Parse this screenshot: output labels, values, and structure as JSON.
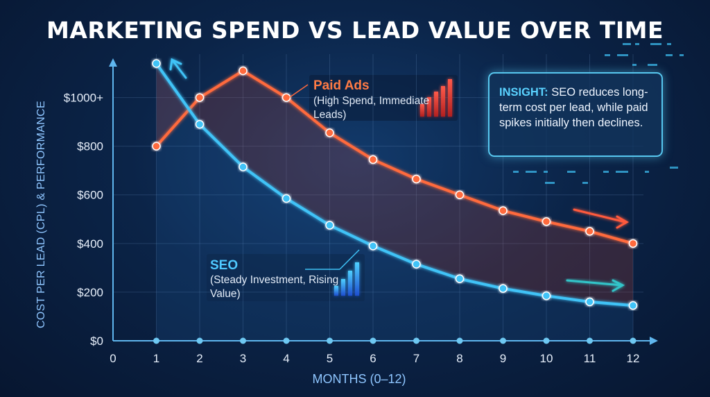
{
  "chart_data": {
    "type": "line",
    "title": "MARKETING SPEND VS LEAD VALUE OVER TIME",
    "xlabel": "MONTHS (0–12)",
    "ylabel": "COST PER LEAD (CPL) & PERFORMANCE",
    "x": [
      1,
      2,
      3,
      4,
      5,
      6,
      7,
      8,
      9,
      10,
      11,
      12
    ],
    "x_ticks": [
      "0",
      "1",
      "2",
      "3",
      "4",
      "5",
      "6",
      "7",
      "8",
      "9",
      "10",
      "11",
      "12"
    ],
    "y_ticks": [
      {
        "value": 0,
        "label": "$0"
      },
      {
        "value": 200,
        "label": "$200"
      },
      {
        "value": 400,
        "label": "$400"
      },
      {
        "value": 600,
        "label": "$600"
      },
      {
        "value": 800,
        "label": "$800"
      },
      {
        "value": 1000,
        "label": "$1000+"
      }
    ],
    "xlim": [
      0,
      12
    ],
    "ylim": [
      0,
      1150
    ],
    "grid": true,
    "series": [
      {
        "name": "Paid Ads",
        "color": "#ff6a3d",
        "values": [
          800,
          1000,
          1110,
          1000,
          855,
          745,
          665,
          600,
          535,
          490,
          450,
          400
        ]
      },
      {
        "name": "SEO",
        "color": "#3fc3f7",
        "values": [
          1140,
          890,
          715,
          585,
          475,
          390,
          315,
          255,
          215,
          185,
          160,
          145
        ]
      }
    ],
    "annotations": {
      "paid": {
        "title": "Paid Ads",
        "subtitle": "(High Spend, Immediate Leads)"
      },
      "seo": {
        "title": "SEO",
        "subtitle": "(Steady Investment, Rising Value)"
      },
      "insight": {
        "label": "INSIGHT:",
        "text": "SEO reduces long-term cost per lead, while paid spikes initially then declines."
      }
    }
  }
}
